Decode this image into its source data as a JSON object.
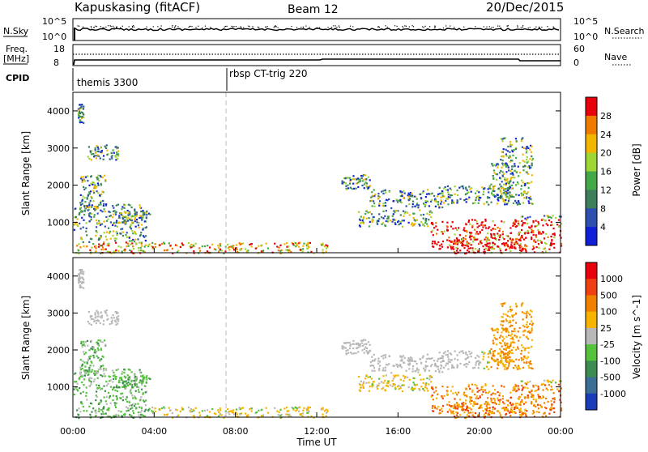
{
  "header": {
    "station": "Kapuskasing (fitACF)",
    "beam": "Beam 12",
    "date": "20/Dec/2015"
  },
  "strips": {
    "nsky_label": "N.Sky",
    "nsearch_label": "N.Search",
    "nsky_ticks": [
      "10^5",
      "10^0"
    ],
    "nsearch_ticks": [
      "10^5",
      "10^0"
    ],
    "freq_label_1": "Freq.",
    "freq_label_2": "[MHz]",
    "freq_ticks": [
      "18",
      "8"
    ],
    "nave_label": "Nave",
    "nave_ticks": [
      "60",
      "0"
    ],
    "cpid_label": "CPID",
    "cpid_segments": [
      {
        "name": "themis 3300",
        "start_hour": 0
      },
      {
        "name": "rbsp CT-trig 220",
        "start_hour": 7.5
      }
    ]
  },
  "chart_data": {
    "type": "heatmap",
    "x_range_hours": [
      0,
      24
    ],
    "x_tick_labels": [
      "00:00",
      "04:00",
      "08:00",
      "12:00",
      "16:00",
      "20:00",
      "00:00"
    ],
    "xlabel": "Time UT",
    "y_range_km": [
      180,
      4500
    ],
    "y_tick_labels": [
      "1000",
      "2000",
      "3000",
      "4000"
    ],
    "ylabel": "Slant Range [km]",
    "mode_change_hour": 7.5,
    "panels": [
      {
        "name": "power",
        "colorbar_label": "Power [dB]",
        "colorbar_ticks": [
          "4",
          "8",
          "12",
          "16",
          "20",
          "24",
          "28"
        ],
        "colors": [
          "#1020d8",
          "#2c4fb0",
          "#3d7f5c",
          "#43a848",
          "#9ed634",
          "#f2b600",
          "#f07a00",
          "#e8000a"
        ]
      },
      {
        "name": "velocity",
        "colorbar_label": "Velocity [m s^-1]",
        "colorbar_ticks": [
          "1000",
          "500",
          "100",
          "25",
          "-25",
          "-100",
          "-500",
          "-1000"
        ],
        "colors": [
          "#1a3cb8",
          "#3a6e96",
          "#3c8c50",
          "#54c23a",
          "#b8b8b8",
          "#f6b400",
          "#f08000",
          "#ee4010",
          "#e8000a"
        ]
      }
    ],
    "scatter_regions": [
      {
        "t0": 0.0,
        "t1": 3.6,
        "r0": 180,
        "r1": 1500
      },
      {
        "t0": 0.3,
        "t1": 1.6,
        "r0": 1300,
        "r1": 2300
      },
      {
        "t0": 0.7,
        "t1": 2.2,
        "r0": 2700,
        "r1": 3100
      },
      {
        "t0": 0.2,
        "t1": 0.5,
        "r0": 3700,
        "r1": 4200
      },
      {
        "t0": 2.5,
        "t1": 12.5,
        "r0": 180,
        "r1": 480
      },
      {
        "t0": 2.0,
        "t1": 3.8,
        "r0": 1000,
        "r1": 1300
      },
      {
        "t0": 13.2,
        "t1": 14.6,
        "r0": 1900,
        "r1": 2300
      },
      {
        "t0": 14.6,
        "t1": 18.2,
        "r0": 1400,
        "r1": 1900
      },
      {
        "t0": 18.0,
        "t1": 21.5,
        "r0": 1500,
        "r1": 2000
      },
      {
        "t0": 14.0,
        "t1": 17.8,
        "r0": 900,
        "r1": 1350
      },
      {
        "t0": 17.6,
        "t1": 22.0,
        "r0": 300,
        "r1": 1100
      },
      {
        "t0": 18.5,
        "t1": 24.0,
        "r0": 180,
        "r1": 600
      },
      {
        "t0": 21.0,
        "t1": 22.6,
        "r0": 1500,
        "r1": 3300
      },
      {
        "t0": 20.5,
        "t1": 21.6,
        "r0": 1700,
        "r1": 2600
      },
      {
        "t0": 22.0,
        "t1": 24.0,
        "r0": 600,
        "r1": 1200
      }
    ]
  }
}
